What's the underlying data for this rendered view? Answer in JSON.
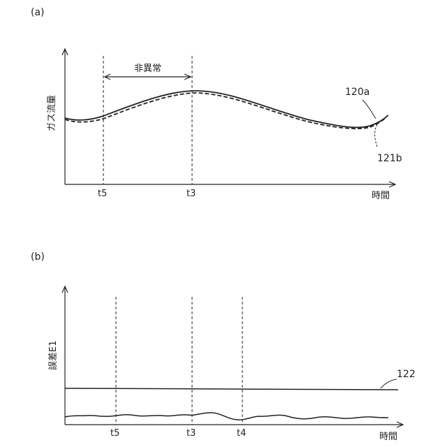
{
  "panel_a": {
    "label": "(a)",
    "ylabel": "ガス流量",
    "xlabel": "時間",
    "abnormal_label": "非異常",
    "ticks": [
      "t5",
      "t3"
    ],
    "curve_solid_label": "120a",
    "curve_dashed_label": "121b"
  },
  "panel_b": {
    "label": "(b)",
    "ylabel": "誤差E1",
    "xlabel": "時間",
    "ticks": [
      "t5",
      "t3",
      "t4"
    ],
    "threshold_label": "122"
  }
}
